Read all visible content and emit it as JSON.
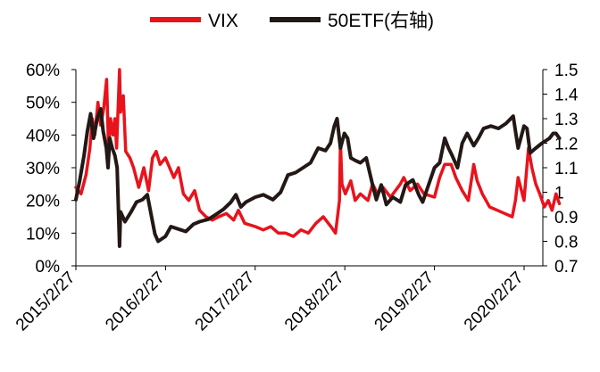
{
  "chart_data": {
    "type": "line",
    "title": "",
    "xlabel": "",
    "ylabel": "",
    "y2label": "",
    "x_tick_labels": [
      "2015/2/27",
      "2016/2/27",
      "2017/2/27",
      "2018/2/27",
      "2019/2/27",
      "2020/2/27"
    ],
    "y_left": {
      "ylim": [
        0,
        0.6
      ],
      "ticks": [
        0,
        0.1,
        0.2,
        0.3,
        0.4,
        0.5,
        0.6
      ],
      "tick_labels": [
        "0%",
        "10%",
        "20%",
        "30%",
        "40%",
        "50%",
        "60%"
      ]
    },
    "y_right": {
      "ylim": [
        0.7,
        1.5
      ],
      "ticks": [
        0.7,
        0.8,
        0.9,
        1.0,
        1.1,
        1.2,
        1.3,
        1.4,
        1.5
      ],
      "tick_labels": [
        "0.7",
        "0.8",
        "0.9",
        "1",
        "1.1",
        "1.2",
        "1.3",
        "1.4",
        "1.5"
      ]
    },
    "grid": false,
    "legend_position": "top-center",
    "series": [
      {
        "name": "VIX",
        "axis": "left",
        "color": "#e8131c",
        "points": [
          [
            "2015-02-27",
            0.24
          ],
          [
            "2015-03-20",
            0.22
          ],
          [
            "2015-04-10",
            0.28
          ],
          [
            "2015-04-25",
            0.36
          ],
          [
            "2015-05-05",
            0.45
          ],
          [
            "2015-05-15",
            0.4
          ],
          [
            "2015-05-28",
            0.5
          ],
          [
            "2015-06-08",
            0.43
          ],
          [
            "2015-06-20",
            0.48
          ],
          [
            "2015-07-02",
            0.57
          ],
          [
            "2015-07-10",
            0.35
          ],
          [
            "2015-07-18",
            0.45
          ],
          [
            "2015-07-28",
            0.4
          ],
          [
            "2015-08-05",
            0.45
          ],
          [
            "2015-08-12",
            0.36
          ],
          [
            "2015-08-24",
            0.6
          ],
          [
            "2015-08-28",
            0.47
          ],
          [
            "2015-09-08",
            0.52
          ],
          [
            "2015-09-18",
            0.35
          ],
          [
            "2015-10-05",
            0.33
          ],
          [
            "2015-10-20",
            0.3
          ],
          [
            "2015-11-10",
            0.24
          ],
          [
            "2015-12-01",
            0.3
          ],
          [
            "2015-12-20",
            0.23
          ],
          [
            "2016-01-05",
            0.33
          ],
          [
            "2016-01-20",
            0.35
          ],
          [
            "2016-02-05",
            0.31
          ],
          [
            "2016-02-27",
            0.33
          ],
          [
            "2016-03-15",
            0.3
          ],
          [
            "2016-04-01",
            0.27
          ],
          [
            "2016-04-20",
            0.3
          ],
          [
            "2016-05-10",
            0.22
          ],
          [
            "2016-06-01",
            0.2
          ],
          [
            "2016-06-25",
            0.23
          ],
          [
            "2016-07-15",
            0.17
          ],
          [
            "2016-08-10",
            0.15
          ],
          [
            "2016-09-05",
            0.14
          ],
          [
            "2016-10-01",
            0.15
          ],
          [
            "2016-11-01",
            0.16
          ],
          [
            "2016-12-01",
            0.14
          ],
          [
            "2016-12-20",
            0.17
          ],
          [
            "2017-01-15",
            0.13
          ],
          [
            "2017-02-27",
            0.12
          ],
          [
            "2017-04-01",
            0.11
          ],
          [
            "2017-05-01",
            0.12
          ],
          [
            "2017-06-01",
            0.1
          ],
          [
            "2017-07-01",
            0.1
          ],
          [
            "2017-08-01",
            0.09
          ],
          [
            "2017-09-01",
            0.11
          ],
          [
            "2017-10-01",
            0.1
          ],
          [
            "2017-11-01",
            0.13
          ],
          [
            "2017-12-01",
            0.15
          ],
          [
            "2018-01-01",
            0.12
          ],
          [
            "2018-01-20",
            0.1
          ],
          [
            "2018-02-05",
            0.2
          ],
          [
            "2018-02-09",
            0.38
          ],
          [
            "2018-02-15",
            0.25
          ],
          [
            "2018-03-01",
            0.22
          ],
          [
            "2018-03-23",
            0.26
          ],
          [
            "2018-04-10",
            0.2
          ],
          [
            "2018-05-01",
            0.22
          ],
          [
            "2018-06-01",
            0.2
          ],
          [
            "2018-06-20",
            0.25
          ],
          [
            "2018-07-10",
            0.22
          ],
          [
            "2018-08-01",
            0.24
          ],
          [
            "2018-09-01",
            0.21
          ],
          [
            "2018-10-11",
            0.25
          ],
          [
            "2018-10-25",
            0.27
          ],
          [
            "2018-11-20",
            0.23
          ],
          [
            "2018-12-20",
            0.25
          ],
          [
            "2019-01-15",
            0.22
          ],
          [
            "2019-02-27",
            0.21
          ],
          [
            "2019-03-20",
            0.27
          ],
          [
            "2019-04-10",
            0.31
          ],
          [
            "2019-05-06",
            0.31
          ],
          [
            "2019-05-25",
            0.27
          ],
          [
            "2019-06-20",
            0.23
          ],
          [
            "2019-07-15",
            0.2
          ],
          [
            "2019-08-06",
            0.31
          ],
          [
            "2019-08-20",
            0.26
          ],
          [
            "2019-09-10",
            0.22
          ],
          [
            "2019-10-10",
            0.18
          ],
          [
            "2019-11-10",
            0.17
          ],
          [
            "2019-12-10",
            0.16
          ],
          [
            "2020-01-10",
            0.15
          ],
          [
            "2020-01-23",
            0.2
          ],
          [
            "2020-02-03",
            0.27
          ],
          [
            "2020-02-27",
            0.2
          ],
          [
            "2020-03-16",
            0.36
          ],
          [
            "2020-03-30",
            0.3
          ],
          [
            "2020-04-15",
            0.25
          ],
          [
            "2020-05-01",
            0.22
          ],
          [
            "2020-05-20",
            0.18
          ],
          [
            "2020-06-05",
            0.2
          ],
          [
            "2020-06-20",
            0.17
          ],
          [
            "2020-07-06",
            0.22
          ],
          [
            "2020-07-20",
            0.19
          ]
        ]
      },
      {
        "name": "50ETF(右轴)",
        "axis": "right",
        "color": "#231815",
        "points": [
          [
            "2015-02-27",
            0.97
          ],
          [
            "2015-03-15",
            1.05
          ],
          [
            "2015-04-01",
            1.15
          ],
          [
            "2015-04-15",
            1.25
          ],
          [
            "2015-04-28",
            1.32
          ],
          [
            "2015-05-10",
            1.22
          ],
          [
            "2015-05-25",
            1.3
          ],
          [
            "2015-06-08",
            1.34
          ],
          [
            "2015-06-18",
            1.25
          ],
          [
            "2015-07-01",
            1.18
          ],
          [
            "2015-07-08",
            1.1
          ],
          [
            "2015-07-15",
            1.22
          ],
          [
            "2015-07-25",
            1.18
          ],
          [
            "2015-08-05",
            1.15
          ],
          [
            "2015-08-14",
            1.1
          ],
          [
            "2015-08-24",
            0.78
          ],
          [
            "2015-08-28",
            0.92
          ],
          [
            "2015-09-15",
            0.88
          ],
          [
            "2015-10-10",
            0.92
          ],
          [
            "2015-11-01",
            0.96
          ],
          [
            "2015-11-25",
            0.97
          ],
          [
            "2015-12-15",
            0.99
          ],
          [
            "2016-01-05",
            0.88
          ],
          [
            "2016-01-15",
            0.83
          ],
          [
            "2016-01-28",
            0.8
          ],
          [
            "2016-02-27",
            0.82
          ],
          [
            "2016-03-20",
            0.86
          ],
          [
            "2016-04-20",
            0.85
          ],
          [
            "2016-05-20",
            0.84
          ],
          [
            "2016-06-20",
            0.87
          ],
          [
            "2016-07-15",
            0.88
          ],
          [
            "2016-08-20",
            0.89
          ],
          [
            "2016-09-20",
            0.91
          ],
          [
            "2016-10-20",
            0.93
          ],
          [
            "2016-11-20",
            0.96
          ],
          [
            "2016-12-10",
            0.99
          ],
          [
            "2016-12-30",
            0.94
          ],
          [
            "2017-01-20",
            0.96
          ],
          [
            "2017-02-27",
            0.98
          ],
          [
            "2017-04-01",
            0.99
          ],
          [
            "2017-05-10",
            0.97
          ],
          [
            "2017-06-10",
            1.0
          ],
          [
            "2017-07-10",
            1.07
          ],
          [
            "2017-08-10",
            1.08
          ],
          [
            "2017-09-10",
            1.1
          ],
          [
            "2017-10-10",
            1.12
          ],
          [
            "2017-11-10",
            1.18
          ],
          [
            "2017-12-10",
            1.17
          ],
          [
            "2017-12-30",
            1.2
          ],
          [
            "2018-01-15",
            1.27
          ],
          [
            "2018-01-26",
            1.3
          ],
          [
            "2018-02-09",
            1.18
          ],
          [
            "2018-02-25",
            1.24
          ],
          [
            "2018-03-10",
            1.22
          ],
          [
            "2018-03-23",
            1.14
          ],
          [
            "2018-04-10",
            1.13
          ],
          [
            "2018-05-01",
            1.12
          ],
          [
            "2018-05-25",
            1.14
          ],
          [
            "2018-06-20",
            1.03
          ],
          [
            "2018-07-05",
            0.97
          ],
          [
            "2018-07-25",
            1.03
          ],
          [
            "2018-08-15",
            0.95
          ],
          [
            "2018-09-10",
            0.98
          ],
          [
            "2018-10-11",
            0.96
          ],
          [
            "2018-11-01",
            1.03
          ],
          [
            "2018-12-01",
            1.05
          ],
          [
            "2018-12-25",
            0.99
          ],
          [
            "2019-01-10",
            0.96
          ],
          [
            "2019-02-27",
            1.1
          ],
          [
            "2019-03-20",
            1.12
          ],
          [
            "2019-04-10",
            1.22
          ],
          [
            "2019-04-25",
            1.18
          ],
          [
            "2019-05-10",
            1.15
          ],
          [
            "2019-06-01",
            1.1
          ],
          [
            "2019-06-20",
            1.2
          ],
          [
            "2019-07-10",
            1.24
          ],
          [
            "2019-08-06",
            1.19
          ],
          [
            "2019-08-25",
            1.22
          ],
          [
            "2019-09-15",
            1.26
          ],
          [
            "2019-10-15",
            1.27
          ],
          [
            "2019-11-15",
            1.26
          ],
          [
            "2019-12-15",
            1.28
          ],
          [
            "2020-01-14",
            1.31
          ],
          [
            "2020-01-23",
            1.25
          ],
          [
            "2020-02-03",
            1.18
          ],
          [
            "2020-02-27",
            1.27
          ],
          [
            "2020-03-10",
            1.26
          ],
          [
            "2020-03-23",
            1.16
          ],
          [
            "2020-04-15",
            1.18
          ],
          [
            "2020-05-10",
            1.2
          ],
          [
            "2020-06-10",
            1.22
          ],
          [
            "2020-06-25",
            1.24
          ],
          [
            "2020-07-06",
            1.24
          ],
          [
            "2020-07-20",
            1.22
          ]
        ]
      }
    ]
  }
}
